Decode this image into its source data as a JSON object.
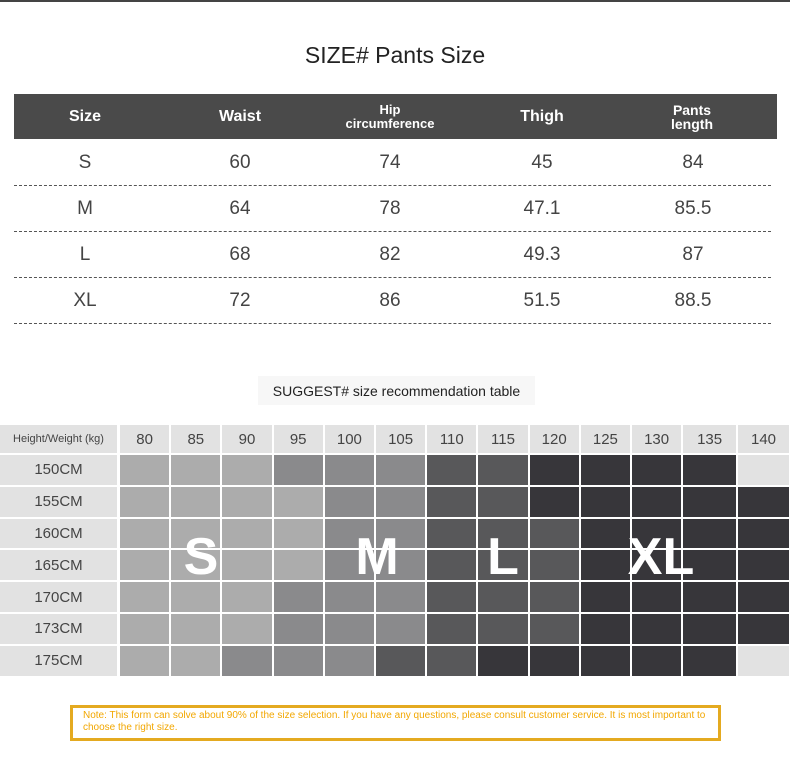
{
  "title": "SIZE# Pants Size",
  "size_table": {
    "headers": [
      "Size",
      "Waist",
      "Hip circumference",
      "Thigh",
      "Pants length"
    ],
    "header_lines": [
      [
        "Size"
      ],
      [
        "Waist"
      ],
      [
        "Hip",
        "circumference"
      ],
      [
        "Thigh"
      ],
      [
        "Pants",
        "length"
      ]
    ],
    "rows": [
      [
        "S",
        "60",
        "74",
        "45",
        "84"
      ],
      [
        "M",
        "64",
        "78",
        "47.1",
        "85.5"
      ],
      [
        "L",
        "68",
        "82",
        "49.3",
        "87"
      ],
      [
        "XL",
        "72",
        "86",
        "51.5",
        "88.5"
      ]
    ]
  },
  "suggest_title": "SUGGEST# size recommendation table",
  "recommendation": {
    "corner_label": "Height/Weight (kg)",
    "weights": [
      "80",
      "85",
      "90",
      "95",
      "100",
      "105",
      "110",
      "115",
      "120",
      "125",
      "130",
      "135",
      "140"
    ],
    "heights": [
      "150CM",
      "155CM",
      "160CM",
      "165CM",
      "170CM",
      "173CM",
      "175CM"
    ],
    "cells": [
      [
        "S",
        "S",
        "S",
        "M",
        "M",
        "M",
        "L",
        "L",
        "XL",
        "XL",
        "XL",
        "XL",
        ""
      ],
      [
        "S",
        "S",
        "S",
        "S",
        "M",
        "M",
        "L",
        "L",
        "XL",
        "XL",
        "XL",
        "XL",
        "XL"
      ],
      [
        "S",
        "S",
        "S",
        "S",
        "M",
        "M",
        "L",
        "L",
        "L",
        "XL",
        "XL",
        "XL",
        "XL"
      ],
      [
        "S",
        "S",
        "S",
        "S",
        "M",
        "M",
        "L",
        "L",
        "L",
        "XL",
        "XL",
        "XL",
        "XL"
      ],
      [
        "S",
        "S",
        "S",
        "M",
        "M",
        "M",
        "L",
        "L",
        "L",
        "XL",
        "XL",
        "XL",
        "XL"
      ],
      [
        "S",
        "S",
        "S",
        "M",
        "M",
        "M",
        "L",
        "L",
        "L",
        "XL",
        "XL",
        "XL",
        "XL"
      ],
      [
        "S",
        "S",
        "M",
        "M",
        "M",
        "L",
        "L",
        "XL",
        "XL",
        "XL",
        "XL",
        "XL",
        ""
      ]
    ],
    "size_colors": {
      "S": "#acacac",
      "M": "#8a8a8c",
      "L": "#58585a",
      "XL": "#37363a",
      "": "#e2e2e2"
    },
    "zone_labels": [
      "S",
      "M",
      "L",
      "XL"
    ]
  },
  "note": "Note: This form can solve about 90% of the size selection. If you have any questions, please consult customer service. It is most important to choose the right size."
}
